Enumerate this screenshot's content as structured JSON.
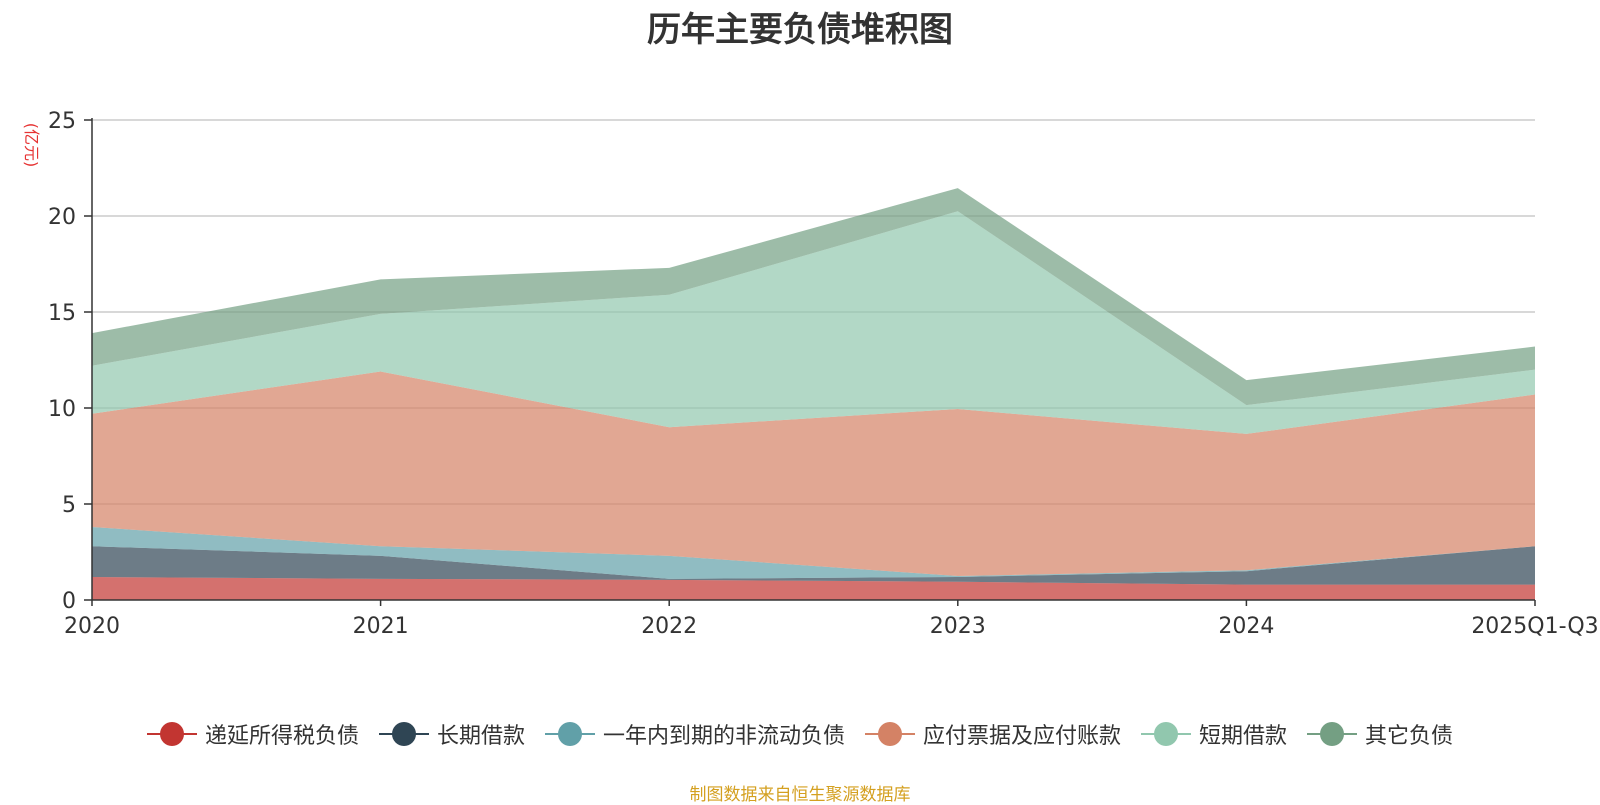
{
  "chart_data": {
    "type": "area",
    "stacked": true,
    "title": "历年主要负债堆积图",
    "ylabel": "(亿元)",
    "ylim": [
      0,
      25
    ],
    "yticks": [
      0,
      5,
      10,
      15,
      20,
      25
    ],
    "categories": [
      "2020",
      "2021",
      "2022",
      "2023",
      "2024",
      "2025Q1-Q3"
    ],
    "grid": true,
    "legend_position": "bottom",
    "series": [
      {
        "name": "递延所得税负债",
        "color": "#c23531",
        "values": [
          1.2,
          1.1,
          1.05,
          0.95,
          0.8,
          0.8
        ]
      },
      {
        "name": "长期借款",
        "color": "#2f4554",
        "values": [
          1.6,
          1.2,
          0.05,
          0.25,
          0.7,
          2.0
        ]
      },
      {
        "name": "一年内到期的非流动负债",
        "color": "#61a0a8",
        "values": [
          1.0,
          0.5,
          1.2,
          0.05,
          0.05,
          0.0
        ]
      },
      {
        "name": "应付票据及应付账款",
        "color": "#d48265",
        "values": [
          5.9,
          9.1,
          6.7,
          8.7,
          7.1,
          7.9
        ]
      },
      {
        "name": "短期借款",
        "color": "#91c7ae",
        "values": [
          2.5,
          3.0,
          6.9,
          10.3,
          1.5,
          1.3
        ]
      },
      {
        "name": "其它负债",
        "color": "#749f83",
        "values": [
          1.7,
          1.8,
          1.4,
          1.2,
          1.3,
          1.2
        ]
      }
    ]
  },
  "footer": {
    "source": "制图数据来自恒生聚源数据库"
  }
}
